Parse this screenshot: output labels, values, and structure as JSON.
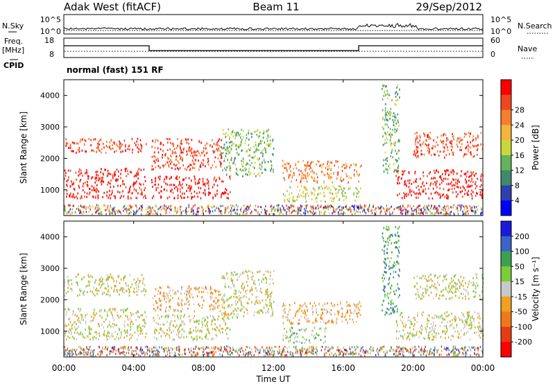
{
  "header": {
    "title": "Adak West (fitACF)",
    "beam": "Beam 11",
    "date": "29/Sep/2012"
  },
  "strip_labels": {
    "nsky": "N.Sky",
    "freq_line1": "Freq.",
    "freq_line2": "[MHz]",
    "cpid": "CPID",
    "nsearch": "N.Search",
    "nave": "Nave",
    "cpid_text": "normal (fast) 151 RF"
  },
  "strip_ticks": {
    "noise_left": [
      "10^5",
      "10^0"
    ],
    "noise_right": [
      "10^5",
      "10^0"
    ],
    "freq_left": [
      "18",
      "8"
    ],
    "nave_right": [
      "60",
      "0"
    ]
  },
  "chart_data": [
    {
      "type": "heatmap",
      "name": "power",
      "ylabel": "Slant Range [km]",
      "yticks": [
        "1000",
        "2000",
        "3000",
        "4000"
      ],
      "ylim": [
        180,
        4500
      ],
      "xlim": [
        0,
        24
      ],
      "colorbar_label": "Power [dB]",
      "colorbar_ticks": [
        "4",
        "8",
        "12",
        "16",
        "20",
        "24",
        "28"
      ],
      "colors": [
        "#0000ff",
        "#2f3faf",
        "#3f8a6a",
        "#63b45c",
        "#c8d83a",
        "#f5b43a",
        "#f67e2c",
        "#f0461e",
        "#ff0000"
      ],
      "features": [
        {
          "t0": 0,
          "t1": 4.7,
          "r0": 700,
          "r1": 1650,
          "level": 8
        },
        {
          "t0": 0,
          "t1": 4.7,
          "r0": 2150,
          "r1": 2600,
          "level": 7
        },
        {
          "t0": 5.0,
          "t1": 9.5,
          "r0": 700,
          "r1": 1400,
          "level": 8
        },
        {
          "t0": 5.0,
          "t1": 9.0,
          "r0": 1600,
          "r1": 2600,
          "level": 7
        },
        {
          "t0": 9.0,
          "t1": 12.0,
          "r0": 1400,
          "r1": 2900,
          "level": 3
        },
        {
          "t0": 12.5,
          "t1": 17.0,
          "r0": 1200,
          "r1": 1900,
          "level": 6
        },
        {
          "t0": 12.5,
          "t1": 17.0,
          "r0": 600,
          "r1": 1100,
          "level": 4
        },
        {
          "t0": 18.2,
          "t1": 19.2,
          "r0": 1500,
          "r1": 4300,
          "level": 3
        },
        {
          "t0": 19.0,
          "t1": 24.0,
          "r0": 700,
          "r1": 1600,
          "level": 8
        },
        {
          "t0": 20.0,
          "t1": 24.0,
          "r0": 2000,
          "r1": 2800,
          "level": 7
        }
      ]
    },
    {
      "type": "heatmap",
      "name": "velocity",
      "ylabel": "Slant Range [km]",
      "xlabel": "Time UT",
      "yticks": [
        "1000",
        "2000",
        "3000",
        "4000"
      ],
      "xticks": [
        "00:00",
        "04:00",
        "08:00",
        "12:00",
        "16:00",
        "20:00",
        "00:00"
      ],
      "ylim": [
        180,
        4500
      ],
      "xlim": [
        0,
        24
      ],
      "colorbar_label": "Velocity [m s⁻¹]",
      "colorbar_ticks": [
        "200",
        "100",
        "50",
        "15",
        "-15",
        "-50",
        "-100",
        "-200"
      ],
      "colors": [
        "#1a1adc",
        "#3a64c8",
        "#3ca050",
        "#7ccc3c",
        "#c8c8c8",
        "#f0a020",
        "#f07818",
        "#e63c14",
        "#ff0000"
      ],
      "features": [
        {
          "t0": 0,
          "t1": 4.7,
          "r0": 700,
          "r1": 1700,
          "level": 4
        },
        {
          "t0": 0,
          "t1": 4.7,
          "r0": 2100,
          "r1": 2800,
          "level": 4
        },
        {
          "t0": 5.0,
          "t1": 9.5,
          "r0": 700,
          "r1": 1500,
          "level": 4
        },
        {
          "t0": 5.0,
          "t1": 9.0,
          "r0": 1600,
          "r1": 2400,
          "level": 5
        },
        {
          "t0": 9.0,
          "t1": 12.0,
          "r0": 1400,
          "r1": 2900,
          "level": 4
        },
        {
          "t0": 12.5,
          "t1": 17.0,
          "r0": 1200,
          "r1": 1900,
          "level": 5
        },
        {
          "t0": 12.5,
          "t1": 15.0,
          "r0": 600,
          "r1": 1100,
          "level": 3
        },
        {
          "t0": 18.2,
          "t1": 19.2,
          "r0": 1500,
          "r1": 4300,
          "level": 2
        },
        {
          "t0": 19.0,
          "t1": 24.0,
          "r0": 700,
          "r1": 1600,
          "level": 4
        },
        {
          "t0": 20.0,
          "t1": 24.0,
          "r0": 2000,
          "r1": 2800,
          "level": 4
        }
      ]
    }
  ]
}
